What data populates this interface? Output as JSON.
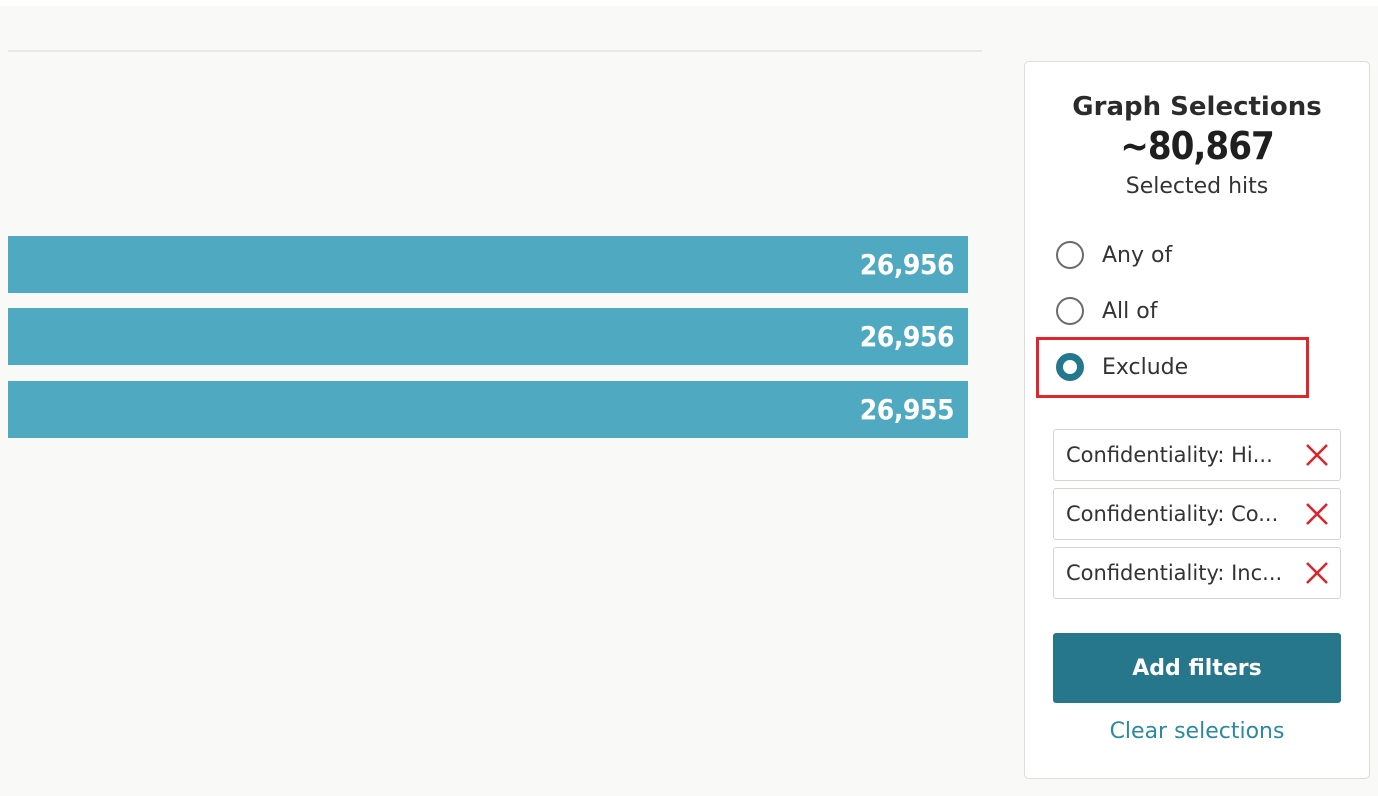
{
  "bars": [
    {
      "value_label": "26,956",
      "value": 26956
    },
    {
      "value_label": "26,956",
      "value": 26956
    },
    {
      "value_label": "26,955",
      "value": 26955
    }
  ],
  "panel": {
    "title": "Graph Selections",
    "count": "~80,867",
    "subtitle": "Selected hits",
    "options": [
      {
        "label": "Any of",
        "checked": false
      },
      {
        "label": "All of",
        "checked": false
      },
      {
        "label": "Exclude",
        "checked": true
      }
    ],
    "chips": [
      {
        "label": "Confidentiality: Hi..."
      },
      {
        "label": "Confidentiality: Co..."
      },
      {
        "label": "Confidentiality: Inc..."
      }
    ],
    "add_button": "Add filters",
    "clear_link": "Clear selections"
  },
  "colors": {
    "bar": "#4ea9c1",
    "accent": "#27778c",
    "remove": "#d8262f",
    "highlight": "#e0262b",
    "link": "#2a8aa0"
  },
  "icons": {
    "remove": "close-icon"
  }
}
